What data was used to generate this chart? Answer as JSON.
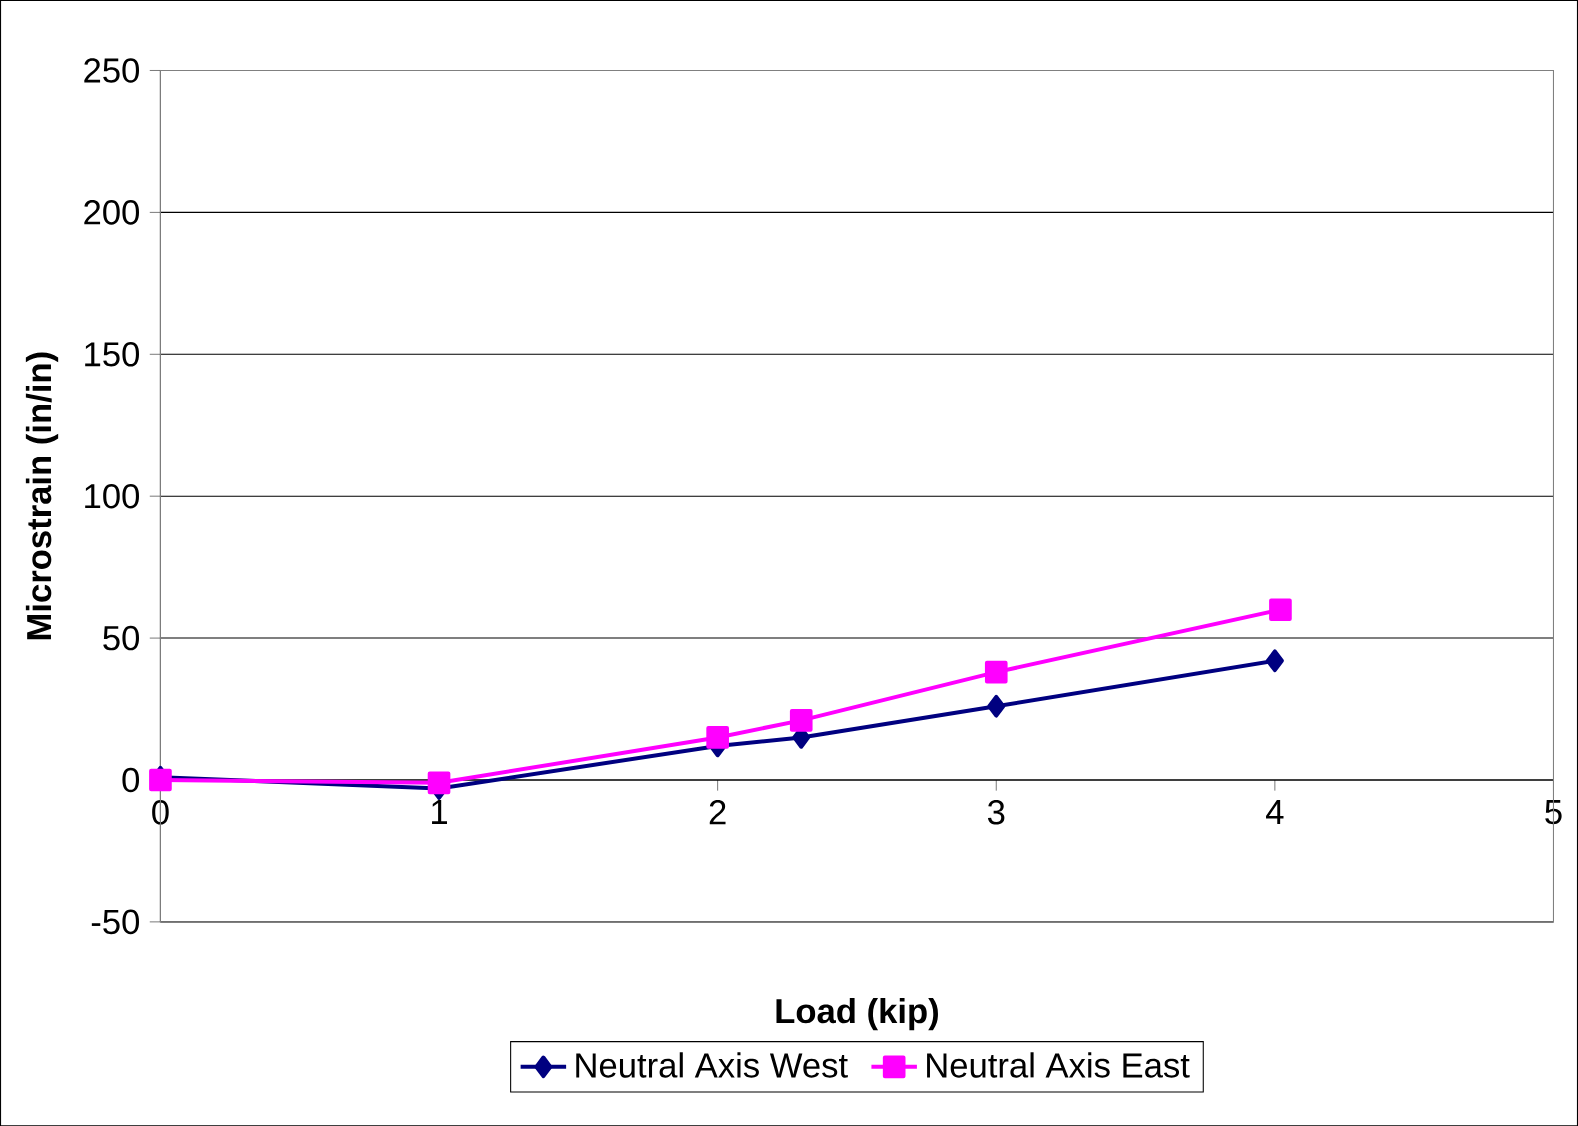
{
  "chart_data": {
    "type": "line",
    "xlabel": "Load (kip)",
    "ylabel": "Microstrain (in/in)",
    "xlim": [
      0,
      5
    ],
    "ylim": [
      -50,
      250
    ],
    "xticks": [
      0,
      1,
      2,
      3,
      4,
      5
    ],
    "yticks": [
      -50,
      0,
      50,
      100,
      150,
      200,
      250
    ],
    "grid": "y",
    "legend": "bottom",
    "line_style": "solid",
    "series": [
      {
        "name": "Neutral Axis West",
        "color": "#000080",
        "marker": "diamond",
        "x": [
          0,
          1,
          2,
          2.3,
          3,
          4
        ],
        "values": [
          1,
          -3,
          12,
          15,
          26,
          42
        ]
      },
      {
        "name": "Neutral Axis East",
        "color": "#ff00ff",
        "marker": "square",
        "x": [
          0,
          1,
          2,
          2.3,
          3,
          4.02
        ],
        "values": [
          0,
          -1,
          15,
          21,
          38,
          60
        ]
      }
    ]
  }
}
